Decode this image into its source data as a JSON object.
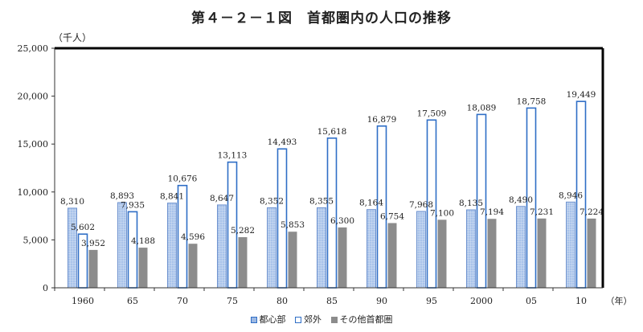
{
  "chart_data": {
    "type": "bar",
    "title": "第４－２－１図　首都圏内の人口の推移",
    "ylabel": "（千人）",
    "xlabel": "（年）",
    "ylim": [
      0,
      25000
    ],
    "yticks": [
      "0",
      "5,000",
      "10,000",
      "15,000",
      "20,000",
      "25,000"
    ],
    "categories": [
      "1960",
      "65",
      "70",
      "75",
      "80",
      "85",
      "90",
      "95",
      "2000",
      "05",
      "10"
    ],
    "series": [
      {
        "name": "都心部",
        "color": "#9db9e3",
        "values": [
          8310,
          8893,
          8841,
          8647,
          8352,
          8355,
          8164,
          7968,
          8135,
          8490,
          8946
        ],
        "labels": [
          "8,310",
          "8,893",
          "8,841",
          "8,647",
          "8,352",
          "8,355",
          "8,164",
          "7,968",
          "8,135",
          "8,490",
          "8,946"
        ]
      },
      {
        "name": "郊外",
        "color": "#ffffff",
        "border": "#2f6ec6",
        "values": [
          5602,
          7935,
          10676,
          13113,
          14493,
          15618,
          16879,
          17509,
          18089,
          18758,
          19449
        ],
        "labels": [
          "5,602",
          "7,935",
          "10,676",
          "13,113",
          "14,493",
          "15,618",
          "16,879",
          "17,509",
          "18,089",
          "18,758",
          "19,449"
        ]
      },
      {
        "name": "その他首都圏",
        "color": "#8c8c8c",
        "values": [
          3952,
          4188,
          4596,
          5282,
          5853,
          6300,
          6754,
          7100,
          7194,
          7231,
          7224
        ],
        "labels": [
          "3,952",
          "4,188",
          "4,596",
          "5,282",
          "5,853",
          "6,300",
          "6,754",
          "7,100",
          "7,194",
          "7,231",
          "7,224"
        ]
      }
    ],
    "grid": false,
    "legend": "bottom"
  }
}
